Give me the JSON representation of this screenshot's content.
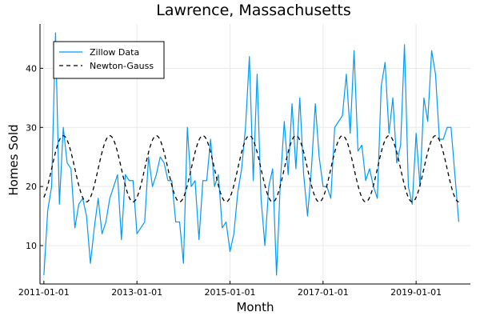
{
  "chart_data": {
    "type": "line",
    "title": "Lawrence, Massachusetts",
    "xlabel": "Month",
    "ylabel": "Homes Sold",
    "x_ticks": [
      "2011-01-01",
      "2013-01-01",
      "2015-01-01",
      "2017-01-01",
      "2019-01-01"
    ],
    "y_ticks": [
      10,
      20,
      30,
      40
    ],
    "xlim": [
      "2010-12-01",
      "2020-03-01"
    ],
    "ylim": [
      3.5,
      47.5
    ],
    "grid": true,
    "legend_position": "top-left",
    "series": [
      {
        "name": "Zillow Data",
        "style": "solid",
        "color": "#009AFA",
        "x": [
          "2011-01",
          "2011-02",
          "2011-03",
          "2011-04",
          "2011-05",
          "2011-06",
          "2011-07",
          "2011-08",
          "2011-09",
          "2011-10",
          "2011-11",
          "2011-12",
          "2012-01",
          "2012-02",
          "2012-03",
          "2012-04",
          "2012-05",
          "2012-06",
          "2012-07",
          "2012-08",
          "2012-09",
          "2012-10",
          "2012-11",
          "2012-12",
          "2013-01",
          "2013-02",
          "2013-03",
          "2013-04",
          "2013-05",
          "2013-06",
          "2013-07",
          "2013-08",
          "2013-09",
          "2013-10",
          "2013-11",
          "2013-12",
          "2014-01",
          "2014-02",
          "2014-03",
          "2014-04",
          "2014-05",
          "2014-06",
          "2014-07",
          "2014-08",
          "2014-09",
          "2014-10",
          "2014-11",
          "2014-12",
          "2015-01",
          "2015-02",
          "2015-03",
          "2015-04",
          "2015-05",
          "2015-06",
          "2015-07",
          "2015-08",
          "2015-09",
          "2015-10",
          "2015-11",
          "2015-12",
          "2016-01",
          "2016-02",
          "2016-03",
          "2016-04",
          "2016-05",
          "2016-06",
          "2016-07",
          "2016-08",
          "2016-09",
          "2016-10",
          "2016-11",
          "2016-12",
          "2017-01",
          "2017-02",
          "2017-03",
          "2017-04",
          "2017-05",
          "2017-06",
          "2017-07",
          "2017-08",
          "2017-09",
          "2017-10",
          "2017-11",
          "2017-12",
          "2018-01",
          "2018-02",
          "2018-03",
          "2018-04",
          "2018-05",
          "2018-06",
          "2018-07",
          "2018-08",
          "2018-09",
          "2018-10",
          "2018-11",
          "2018-12",
          "2019-01",
          "2019-02",
          "2019-03",
          "2019-04",
          "2019-05",
          "2019-06",
          "2019-07",
          "2019-08",
          "2019-09",
          "2019-10",
          "2019-11",
          "2019-12"
        ],
        "y": [
          5,
          16,
          20,
          46,
          17,
          30,
          24,
          23,
          13,
          17,
          18,
          15,
          7,
          13,
          18,
          12,
          14,
          18,
          20,
          22,
          11,
          22,
          21,
          21,
          12,
          13,
          14,
          25,
          20,
          22,
          25,
          24,
          21,
          21,
          14,
          14,
          7,
          30,
          20,
          21,
          11,
          21,
          21,
          28,
          20,
          22,
          13,
          14,
          9,
          12,
          19,
          23,
          30,
          42,
          21,
          39,
          18,
          10,
          20,
          23,
          5,
          21,
          31,
          22,
          34,
          23,
          35,
          22,
          15,
          23,
          34,
          25,
          20,
          20,
          18,
          30,
          31,
          32,
          39,
          29,
          43,
          26,
          27,
          21,
          23,
          20,
          18,
          37,
          41,
          29,
          35,
          24,
          27,
          44,
          20,
          17,
          29,
          20,
          35,
          31,
          43,
          39,
          28,
          28,
          30,
          30,
          22,
          14
        ]
      },
      {
        "name": "Newton-Gauss",
        "style": "dashed",
        "color": "#000000",
        "model": {
          "mean": 23,
          "amplitude": 5.6,
          "period_months": 12,
          "peak_month": 6
        }
      }
    ]
  }
}
